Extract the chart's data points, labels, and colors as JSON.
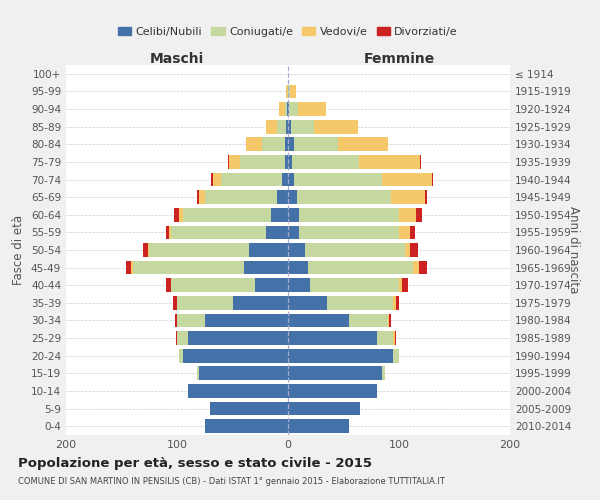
{
  "age_groups": [
    "0-4",
    "5-9",
    "10-14",
    "15-19",
    "20-24",
    "25-29",
    "30-34",
    "35-39",
    "40-44",
    "45-49",
    "50-54",
    "55-59",
    "60-64",
    "65-69",
    "70-74",
    "75-79",
    "80-84",
    "85-89",
    "90-94",
    "95-99",
    "100+"
  ],
  "birth_years": [
    "2010-2014",
    "2005-2009",
    "2000-2004",
    "1995-1999",
    "1990-1994",
    "1985-1989",
    "1980-1984",
    "1975-1979",
    "1970-1974",
    "1965-1969",
    "1960-1964",
    "1955-1959",
    "1950-1954",
    "1945-1949",
    "1940-1944",
    "1935-1939",
    "1930-1934",
    "1925-1929",
    "1920-1924",
    "1915-1919",
    "≤ 1914"
  ],
  "colors": {
    "celibi": "#4472a8",
    "coniugati": "#c5d8a0",
    "vedovi": "#f5c96a",
    "divorziati": "#cc2222"
  },
  "maschi": {
    "celibi": [
      75,
      70,
      90,
      80,
      95,
      90,
      75,
      50,
      30,
      40,
      35,
      20,
      15,
      10,
      5,
      3,
      3,
      2,
      1,
      0,
      0
    ],
    "coniugati": [
      0,
      0,
      0,
      2,
      3,
      10,
      25,
      50,
      75,
      100,
      90,
      85,
      80,
      65,
      55,
      40,
      20,
      8,
      2,
      0,
      0
    ],
    "vedovi": [
      0,
      0,
      0,
      0,
      0,
      0,
      0,
      0,
      0,
      1,
      1,
      2,
      3,
      5,
      8,
      10,
      15,
      10,
      5,
      2,
      0
    ],
    "divorziati": [
      0,
      0,
      0,
      0,
      0,
      1,
      2,
      4,
      5,
      5,
      5,
      3,
      5,
      2,
      1,
      1,
      0,
      0,
      0,
      0,
      0
    ]
  },
  "femmine": {
    "celibi": [
      55,
      65,
      80,
      85,
      95,
      80,
      55,
      35,
      20,
      18,
      15,
      10,
      10,
      8,
      5,
      4,
      5,
      3,
      1,
      0,
      0
    ],
    "coniugati": [
      0,
      0,
      0,
      2,
      5,
      15,
      35,
      60,
      80,
      95,
      90,
      90,
      90,
      85,
      80,
      60,
      40,
      20,
      8,
      2,
      0
    ],
    "vedovi": [
      0,
      0,
      0,
      0,
      0,
      1,
      1,
      2,
      3,
      5,
      5,
      10,
      15,
      30,
      45,
      55,
      45,
      40,
      25,
      5,
      0
    ],
    "divorziati": [
      0,
      0,
      0,
      0,
      0,
      1,
      2,
      3,
      5,
      7,
      7,
      4,
      6,
      2,
      1,
      1,
      0,
      0,
      0,
      0,
      0
    ]
  },
  "xlim": 200,
  "title": "Popolazione per età, sesso e stato civile - 2015",
  "subtitle": "COMUNE DI SAN MARTINO IN PENSILIS (CB) - Dati ISTAT 1° gennaio 2015 - Elaborazione TUTTITALIA.IT",
  "ylabel_left": "Fasce di età",
  "ylabel_right": "Anni di nascita",
  "xlabel_left": "Maschi",
  "xlabel_right": "Femmine",
  "legend_labels": [
    "Celibi/Nubili",
    "Coniugati/e",
    "Vedovi/e",
    "Divorziati/e"
  ],
  "bg_color": "#f0f0f0",
  "plot_bg": "#ffffff"
}
